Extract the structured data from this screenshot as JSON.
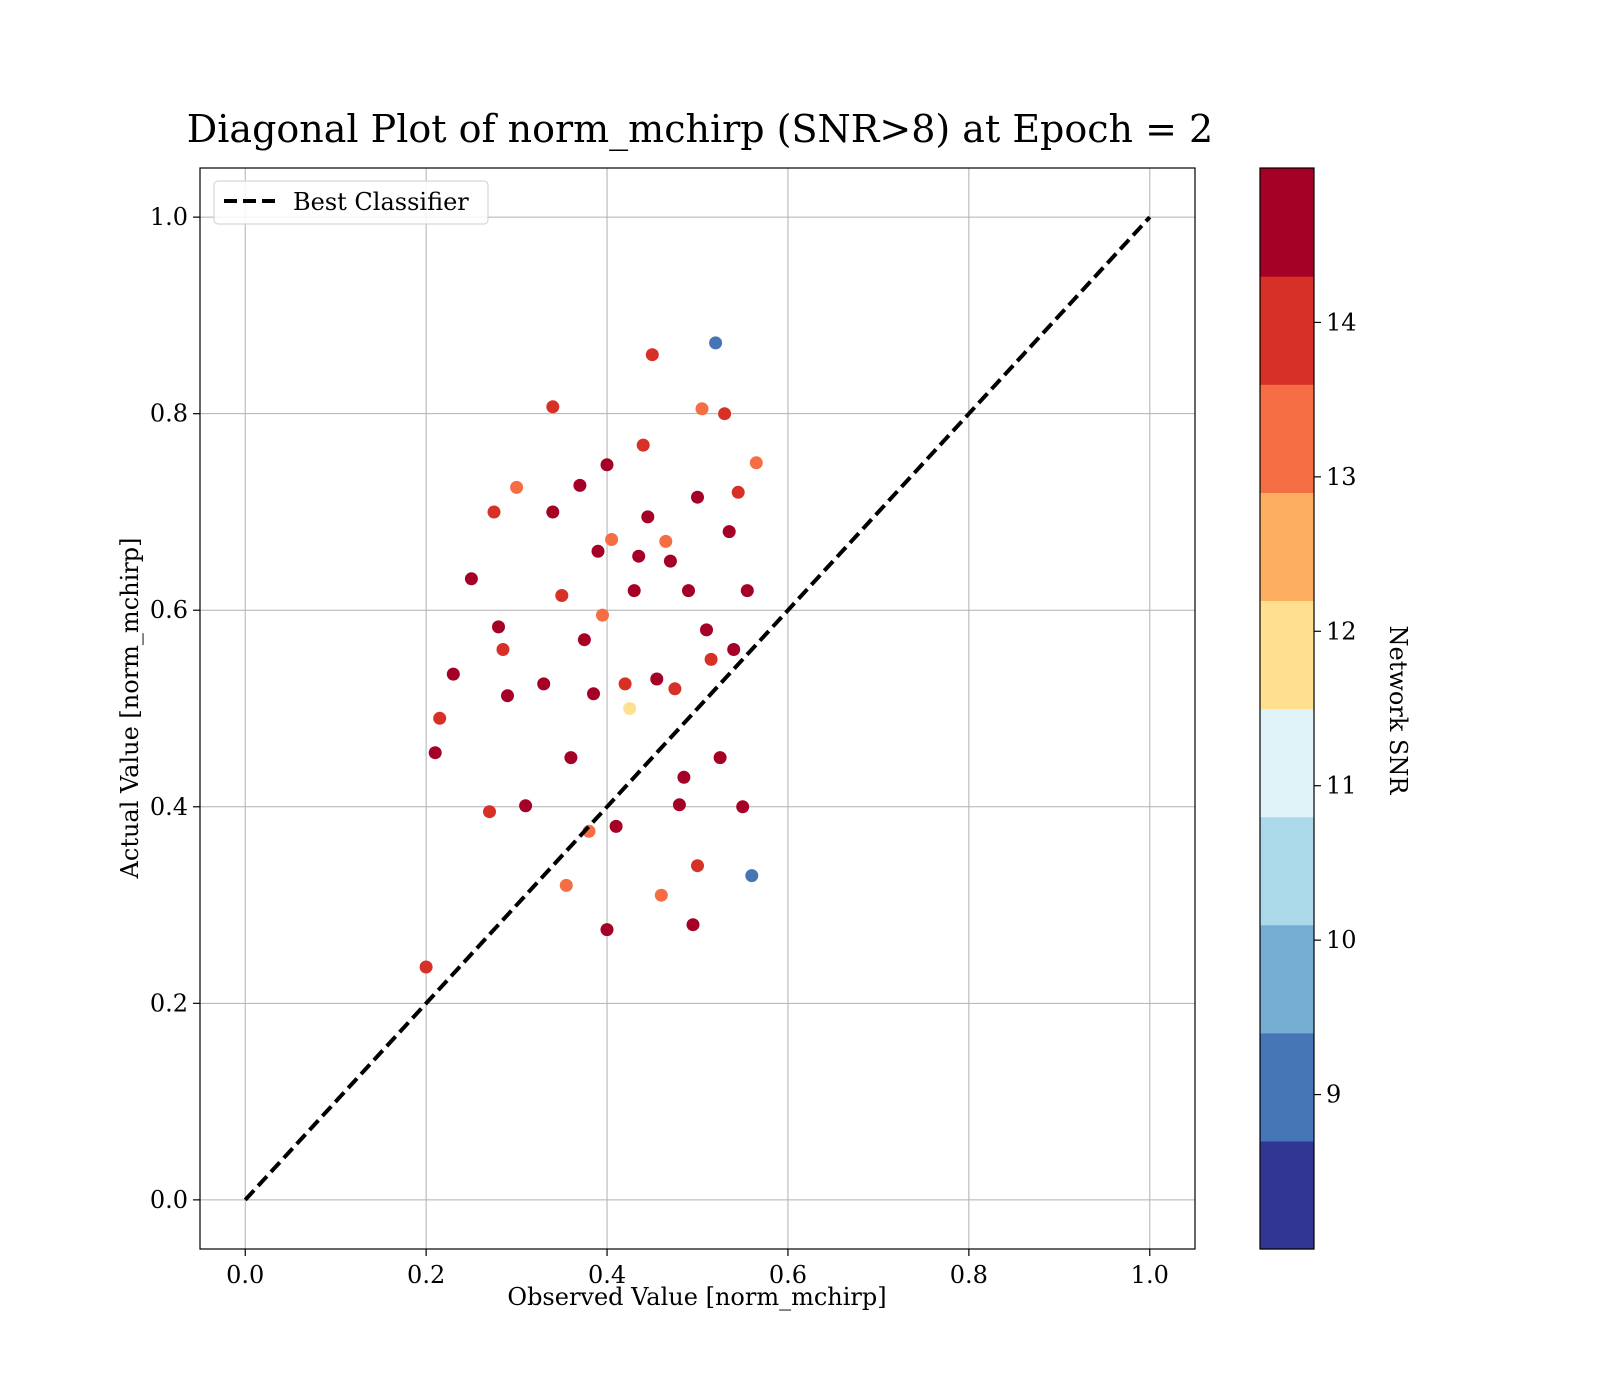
{
  "chart_data": {
    "type": "scatter",
    "title": "Diagonal Plot of norm_mchirp (SNR>8) at Epoch = 2",
    "xlabel": "Observed Value [norm_mchirp]",
    "ylabel": "Actual Value [norm_mchirp]",
    "xlim": [
      -0.05,
      1.05
    ],
    "ylim": [
      -0.05,
      1.05
    ],
    "x_ticks": [
      "0.0",
      "0.2",
      "0.4",
      "0.6",
      "0.8",
      "1.0"
    ],
    "y_ticks": [
      "0.0",
      "0.2",
      "0.4",
      "0.6",
      "0.8",
      "1.0"
    ],
    "grid": true,
    "legend": {
      "position": "top-left",
      "entries": [
        "Best Classifier"
      ]
    },
    "reference_line": {
      "name": "Best Classifier",
      "x": [
        0,
        1
      ],
      "y": [
        0,
        1
      ],
      "style": "dashed",
      "color": "#000000"
    },
    "colorbar": {
      "label": "Network SNR",
      "range": [
        8,
        15
      ],
      "ticks": [
        "9",
        "10",
        "11",
        "12",
        "13",
        "14"
      ],
      "tick_values": [
        9,
        10,
        11,
        12,
        13,
        14
      ],
      "colors": [
        "#313695",
        "#4575b4",
        "#74add1",
        "#abd9e9",
        "#e0f3f8",
        "#fee090",
        "#fdae61",
        "#f46d43",
        "#d73027",
        "#a50026"
      ]
    },
    "points_x": [
      0.2,
      0.21,
      0.215,
      0.23,
      0.25,
      0.27,
      0.275,
      0.28,
      0.285,
      0.29,
      0.3,
      0.31,
      0.33,
      0.34,
      0.34,
      0.35,
      0.355,
      0.36,
      0.37,
      0.375,
      0.38,
      0.385,
      0.39,
      0.395,
      0.4,
      0.4,
      0.405,
      0.41,
      0.42,
      0.425,
      0.43,
      0.435,
      0.44,
      0.445,
      0.45,
      0.455,
      0.46,
      0.465,
      0.47,
      0.475,
      0.48,
      0.485,
      0.49,
      0.495,
      0.5,
      0.5,
      0.505,
      0.51,
      0.515,
      0.52,
      0.525,
      0.53,
      0.535,
      0.54,
      0.545,
      0.55,
      0.555,
      0.56,
      0.565
    ],
    "points_y": [
      0.237,
      0.455,
      0.49,
      0.535,
      0.632,
      0.395,
      0.7,
      0.583,
      0.56,
      0.513,
      0.725,
      0.401,
      0.525,
      0.807,
      0.7,
      0.615,
      0.32,
      0.45,
      0.727,
      0.57,
      0.375,
      0.515,
      0.66,
      0.595,
      0.748,
      0.275,
      0.672,
      0.38,
      0.525,
      0.5,
      0.62,
      0.655,
      0.768,
      0.695,
      0.86,
      0.53,
      0.31,
      0.67,
      0.65,
      0.52,
      0.402,
      0.43,
      0.62,
      0.28,
      0.715,
      0.34,
      0.805,
      0.58,
      0.55,
      0.872,
      0.45,
      0.8,
      0.68,
      0.56,
      0.72,
      0.4,
      0.62,
      0.33,
      0.75
    ],
    "points_snr": [
      14,
      15,
      14,
      15,
      15,
      14,
      14,
      15,
      14,
      15,
      13,
      15,
      15,
      14,
      15,
      14,
      13,
      15,
      15,
      15,
      13,
      15,
      15,
      13,
      15,
      15,
      13,
      15,
      14,
      12,
      15,
      15,
      14,
      15,
      14,
      15,
      13,
      13,
      15,
      14,
      15,
      15,
      15,
      15,
      15,
      14,
      13,
      15,
      14,
      9,
      15,
      14,
      15,
      15,
      14,
      15,
      15,
      9,
      13
    ]
  }
}
